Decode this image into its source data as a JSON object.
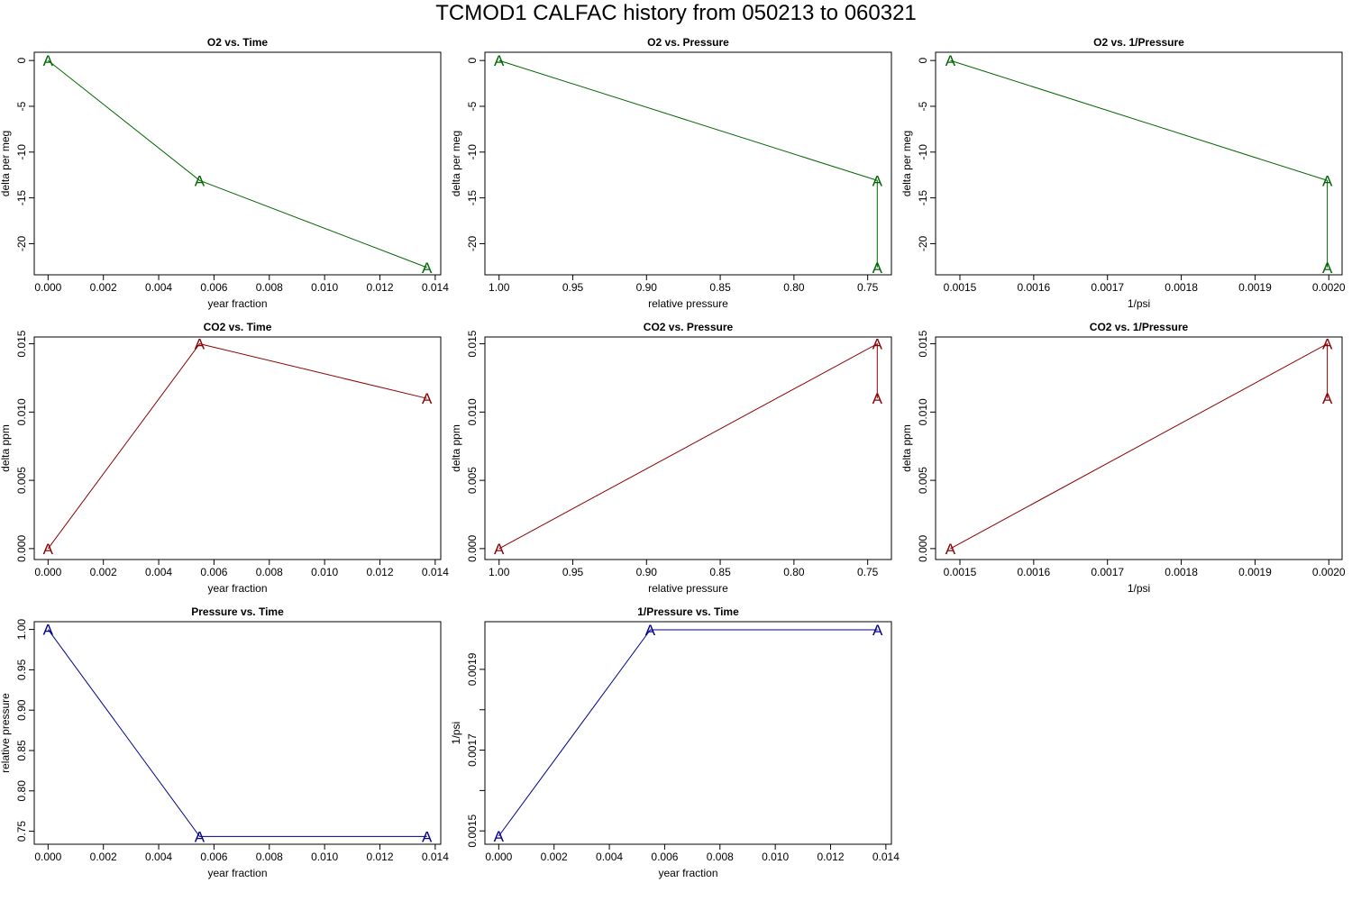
{
  "title": "TCMOD1   CALFAC history from  050213  to  060321",
  "colors": {
    "o2": "#006400",
    "co2": "#8b0000",
    "pressure": "#00008b",
    "axis": "#000000"
  },
  "marker_label": "A",
  "chart_data": [
    {
      "type": "line",
      "title": "O2 vs. Time",
      "xlabel": "year fraction",
      "ylabel": "delta per meg",
      "x": [
        0.0,
        0.00548,
        0.0137
      ],
      "y": [
        0.0,
        -13.1,
        -22.6
      ],
      "xlim": [
        -0.0005,
        0.0142
      ],
      "ylim": [
        -23.4,
        0.9
      ],
      "xticks": [
        0,
        0.002,
        0.004,
        0.006,
        0.008,
        0.01,
        0.012,
        0.014
      ],
      "xtick_labels": [
        "0.000",
        "0.002",
        "0.004",
        "0.006",
        "0.008",
        "0.010",
        "0.012",
        "0.014"
      ],
      "yticks": [
        0,
        -5,
        -10,
        -15,
        -20
      ],
      "ytick_labels": [
        "0",
        "-5",
        "-10",
        "-15",
        "-20"
      ],
      "color": "o2"
    },
    {
      "type": "line",
      "title": "O2 vs. Pressure",
      "xlabel": "relative pressure",
      "ylabel": "delta per meg",
      "x": [
        1.0,
        0.7435,
        0.7435
      ],
      "y": [
        0.0,
        -13.1,
        -22.6
      ],
      "xlim": [
        1.0096,
        0.7339
      ],
      "ylim": [
        -23.4,
        0.9
      ],
      "xticks": [
        1.0,
        0.95,
        0.9,
        0.85,
        0.8,
        0.75
      ],
      "xtick_labels": [
        "1.00",
        "0.95",
        "0.90",
        "0.85",
        "0.80",
        "0.75"
      ],
      "yticks": [
        0,
        -5,
        -10,
        -15,
        -20
      ],
      "ytick_labels": [
        "0",
        "-5",
        "-10",
        "-15",
        "-20"
      ],
      "color": "o2"
    },
    {
      "type": "line",
      "title": "O2 vs. 1/Pressure",
      "xlabel": "1/psi",
      "ylabel": "delta per meg",
      "x": [
        0.001487,
        0.001998,
        0.001998
      ],
      "y": [
        0.0,
        -13.1,
        -22.6
      ],
      "xlim": [
        0.001467,
        0.002018
      ],
      "ylim": [
        -23.4,
        0.9
      ],
      "xticks": [
        0.0015,
        0.0016,
        0.0017,
        0.0018,
        0.0019,
        0.002
      ],
      "xtick_labels": [
        "0.0015",
        "0.0016",
        "0.0017",
        "0.0018",
        "0.0019",
        "0.0020"
      ],
      "yticks": [
        0,
        -5,
        -10,
        -15,
        -20
      ],
      "ytick_labels": [
        "0",
        "-5",
        "-10",
        "-15",
        "-20"
      ],
      "color": "o2"
    },
    {
      "type": "line",
      "title": "CO2 vs. Time",
      "xlabel": "year fraction",
      "ylabel": "delta ppm",
      "x": [
        0.0,
        0.00548,
        0.0137
      ],
      "y": [
        0.0,
        0.015,
        0.011
      ],
      "xlim": [
        -0.0005,
        0.0142
      ],
      "ylim": [
        -0.0008,
        0.0155
      ],
      "xticks": [
        0,
        0.002,
        0.004,
        0.006,
        0.008,
        0.01,
        0.012,
        0.014
      ],
      "xtick_labels": [
        "0.000",
        "0.002",
        "0.004",
        "0.006",
        "0.008",
        "0.010",
        "0.012",
        "0.014"
      ],
      "yticks": [
        0,
        0.005,
        0.01,
        0.015
      ],
      "ytick_labels": [
        "0.000",
        "0.005",
        "0.010",
        "0.015"
      ],
      "color": "co2"
    },
    {
      "type": "line",
      "title": "CO2 vs. Pressure",
      "xlabel": "relative pressure",
      "ylabel": "delta ppm",
      "x": [
        1.0,
        0.7435,
        0.7435
      ],
      "y": [
        0.0,
        0.015,
        0.011
      ],
      "xlim": [
        1.0096,
        0.7339
      ],
      "ylim": [
        -0.0008,
        0.0155
      ],
      "xticks": [
        1.0,
        0.95,
        0.9,
        0.85,
        0.8,
        0.75
      ],
      "xtick_labels": [
        "1.00",
        "0.95",
        "0.90",
        "0.85",
        "0.80",
        "0.75"
      ],
      "yticks": [
        0,
        0.005,
        0.01,
        0.015
      ],
      "ytick_labels": [
        "0.000",
        "0.005",
        "0.010",
        "0.015"
      ],
      "color": "co2"
    },
    {
      "type": "line",
      "title": "CO2 vs. 1/Pressure",
      "xlabel": "1/psi",
      "ylabel": "delta ppm",
      "x": [
        0.001487,
        0.001998,
        0.001998
      ],
      "y": [
        0.0,
        0.015,
        0.011
      ],
      "xlim": [
        0.001467,
        0.002018
      ],
      "ylim": [
        -0.0008,
        0.0155
      ],
      "xticks": [
        0.0015,
        0.0016,
        0.0017,
        0.0018,
        0.0019,
        0.002
      ],
      "xtick_labels": [
        "0.0015",
        "0.0016",
        "0.0017",
        "0.0018",
        "0.0019",
        "0.0020"
      ],
      "yticks": [
        0,
        0.005,
        0.01,
        0.015
      ],
      "ytick_labels": [
        "0.000",
        "0.005",
        "0.010",
        "0.015"
      ],
      "color": "co2"
    },
    {
      "type": "line",
      "title": "Pressure vs. Time",
      "xlabel": "year fraction",
      "ylabel": "relative pressure",
      "x": [
        0.0,
        0.00548,
        0.0137
      ],
      "y": [
        1.0,
        0.7435,
        0.7435
      ],
      "xlim": [
        -0.0005,
        0.0142
      ],
      "ylim": [
        0.7339,
        1.0096
      ],
      "xticks": [
        0,
        0.002,
        0.004,
        0.006,
        0.008,
        0.01,
        0.012,
        0.014
      ],
      "xtick_labels": [
        "0.000",
        "0.002",
        "0.004",
        "0.006",
        "0.008",
        "0.010",
        "0.012",
        "0.014"
      ],
      "yticks": [
        1.0,
        0.95,
        0.9,
        0.85,
        0.8,
        0.75
      ],
      "ytick_labels": [
        "1.00",
        "0.95",
        "0.90",
        "0.85",
        "0.80",
        "0.75"
      ],
      "color": "pressure"
    },
    {
      "type": "line",
      "title": "1/Pressure vs. Time",
      "xlabel": "year fraction",
      "ylabel": "1/psi",
      "x": [
        0.0,
        0.00548,
        0.0137
      ],
      "y": [
        0.001487,
        0.001998,
        0.001998
      ],
      "xlim": [
        -0.0005,
        0.0142
      ],
      "ylim": [
        0.001467,
        0.002018
      ],
      "xticks": [
        0,
        0.002,
        0.004,
        0.006,
        0.008,
        0.01,
        0.012,
        0.014
      ],
      "xtick_labels": [
        "0.000",
        "0.002",
        "0.004",
        "0.006",
        "0.008",
        "0.010",
        "0.012",
        "0.014"
      ],
      "yticks": [
        0.0015,
        0.0016,
        0.0017,
        0.0018,
        0.0019
      ],
      "ytick_labels": [
        "0.0015",
        "",
        "0.0017",
        "",
        "0.0019"
      ],
      "color": "pressure"
    }
  ]
}
